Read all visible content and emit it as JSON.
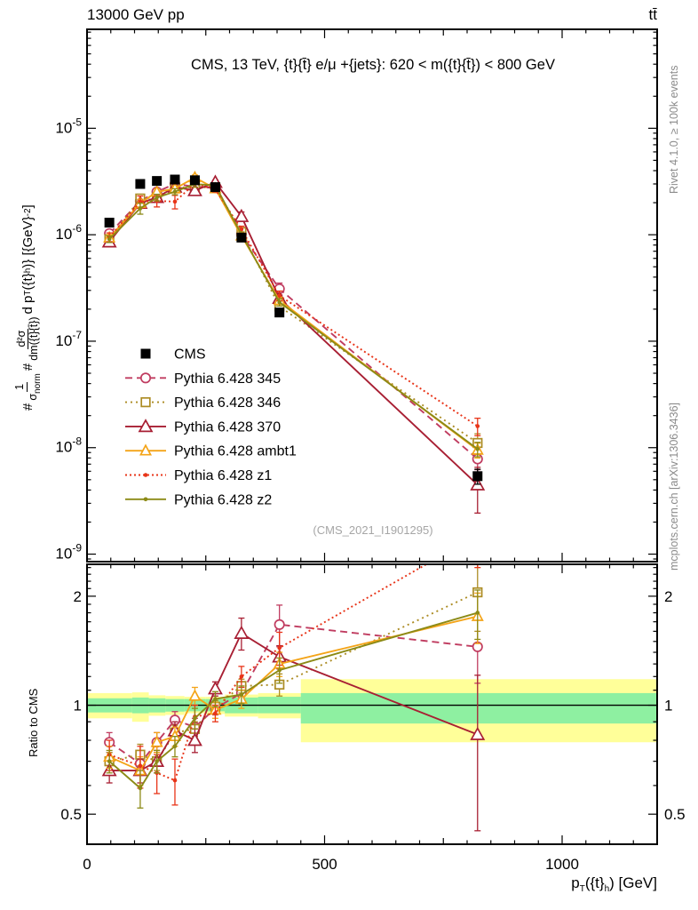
{
  "header": {
    "left": "13000 GeV pp",
    "right": "tt̄"
  },
  "panel_title": "CMS, 13 TeV, {t}{t̄} e/μ +{jets}: 620 < m({t}{t̄}) < 800 GeV",
  "watermark": "(CMS_2021_I1901295)",
  "side_notes": {
    "top": "Rivet 4.1.0, ≥ 100k events",
    "bottom": "mcplots.cern.ch [arXiv:1306.3436]"
  },
  "ratio_ylabel": "Ratio to CMS",
  "xlabel_parts": [
    {
      "t": "p"
    },
    {
      "sub": "T"
    },
    {
      "t": "({t}"
    },
    {
      "sub": "h"
    },
    {
      "t": ") [GeV]"
    }
  ],
  "ylabel_parts": [
    {
      "t": "#"
    },
    {
      "frac": [
        "1",
        "σ_norm"
      ]
    },
    {
      "t": "#"
    },
    {
      "frac": [
        "d²σ",
        "dm({t}{t̄})"
      ]
    },
    {
      "t": " d p"
    },
    {
      "sub": "T"
    },
    {
      "t": "({t}"
    },
    {
      "sub": "h"
    },
    {
      "t": ")} [{GeV}"
    },
    {
      "sup": "-2"
    },
    {
      "t": "]"
    }
  ],
  "colors": {
    "cms": "#000000",
    "band_yellow": "#ffff99",
    "band_green": "#8ef0a1",
    "frame": "#000000",
    "gray_text": "#8b8b8b"
  },
  "chart_data": {
    "type": "line",
    "title": "CMS, 13 TeV, {t}{t̄} e/μ +{jets}: 620 < m({t}{t̄}) < 800 GeV",
    "xlabel": "p_T({t}_h) [GeV]",
    "ylabel_main": "#1/σ_norm # d²σ/dm({t}{t̄}) d p_T({t}_h)} [{GeV}^-2]",
    "ylabel_ratio": "Ratio to CMS",
    "x": [
      47,
      112,
      147,
      185,
      227,
      270,
      325,
      405,
      822
    ],
    "bin_edges": [
      0,
      95,
      130,
      165,
      205,
      250,
      290,
      360,
      450,
      1200
    ],
    "axes": {
      "x": {
        "min": 0,
        "max": 1200,
        "major_ticks": [
          0,
          500,
          1000
        ],
        "minor_step": 50
      },
      "y_main": {
        "min": 8.5e-10,
        "max": 8.5e-05,
        "label_decades": [
          -5,
          -6,
          -7,
          -8,
          -9
        ]
      },
      "y_ratio": {
        "min": 0.413,
        "max": 2.45,
        "labeled_ticks": [
          2,
          1,
          0.5
        ]
      }
    },
    "cms": {
      "label": "CMS",
      "color": "#000000",
      "values": [
        1.3e-06,
        3e-06,
        3.2e-06,
        3.3e-06,
        3.25e-06,
        2.8e-06,
        9.4e-07,
        1.86e-07,
        5.4e-09
      ],
      "rel_err": [
        0.04,
        0.03,
        0.03,
        0.03,
        0.03,
        0.03,
        0.04,
        0.06,
        0.16
      ]
    },
    "series": [
      {
        "name": "Pythia 6.428 345",
        "color": "#c03c60",
        "dash": "8,5",
        "marker": "circle",
        "ratio": [
          0.79,
          0.69,
          0.79,
          0.91,
          0.87,
          0.98,
          1.08,
          1.67,
          1.45
        ],
        "err": [
          0.05,
          0.05,
          0.05,
          0.05,
          0.05,
          0.04,
          0.06,
          0.22,
          0.3
        ]
      },
      {
        "name": "Pythia 6.428 346",
        "color": "#ac8c24",
        "dash": "2,4",
        "marker": "square",
        "ratio": [
          0.7,
          0.73,
          0.7,
          0.84,
          0.86,
          0.99,
          1.13,
          1.14,
          2.05
        ],
        "err": [
          0.04,
          0.05,
          0.04,
          0.04,
          0.04,
          0.04,
          0.05,
          0.08,
          0.45
        ]
      },
      {
        "name": "Pythia 6.428 370",
        "color": "#a81f33",
        "dash": "",
        "marker": "triangle",
        "ratio": [
          0.66,
          0.66,
          0.7,
          0.85,
          0.8,
          1.11,
          1.58,
          1.36,
          0.83
        ],
        "err": [
          0.05,
          0.05,
          0.05,
          0.05,
          0.06,
          0.05,
          0.16,
          0.1,
          0.38
        ]
      },
      {
        "name": "Pythia 6.428 ambt1",
        "color": "#f4a418",
        "dash": "",
        "marker": "triangle-small",
        "ratio": [
          0.72,
          0.66,
          0.79,
          0.82,
          1.06,
          0.97,
          1.04,
          1.3,
          1.76
        ],
        "err": [
          0.05,
          0.06,
          0.05,
          0.05,
          0.06,
          0.05,
          0.06,
          0.1,
          0.28
        ]
      },
      {
        "name": "Pythia 6.428 z1",
        "color": "#e83418",
        "dash": "2,3",
        "marker": "dot",
        "ratio": [
          0.73,
          0.68,
          0.65,
          0.62,
          0.93,
          0.95,
          1.2,
          1.44,
          2.95
        ],
        "err": [
          0.07,
          0.09,
          0.08,
          0.09,
          0.07,
          0.05,
          0.08,
          0.15,
          0.55
        ]
      },
      {
        "name": "Pythia 6.428 z2",
        "color": "#8c8a16",
        "dash": "",
        "marker": "dot",
        "ratio": [
          0.7,
          0.59,
          0.7,
          0.77,
          0.92,
          1.04,
          1.07,
          1.25,
          1.8
        ],
        "err": [
          0.05,
          0.07,
          0.05,
          0.05,
          0.06,
          0.05,
          0.06,
          0.1,
          0.28
        ]
      }
    ],
    "bands": [
      {
        "x0": 0,
        "x1": 95,
        "yellow": [
          0.92,
          1.08
        ],
        "green": [
          0.955,
          1.045
        ]
      },
      {
        "x0": 95,
        "x1": 130,
        "yellow": [
          0.9,
          1.085
        ],
        "green": [
          0.95,
          1.05
        ]
      },
      {
        "x0": 130,
        "x1": 165,
        "yellow": [
          0.935,
          1.065
        ],
        "green": [
          0.955,
          1.045
        ]
      },
      {
        "x0": 165,
        "x1": 205,
        "yellow": [
          0.94,
          1.06
        ],
        "green": [
          0.96,
          1.04
        ]
      },
      {
        "x0": 205,
        "x1": 250,
        "yellow": [
          0.95,
          1.055
        ],
        "green": [
          0.962,
          1.04
        ]
      },
      {
        "x0": 250,
        "x1": 290,
        "yellow": [
          0.945,
          1.055
        ],
        "green": [
          0.962,
          1.04
        ]
      },
      {
        "x0": 290,
        "x1": 360,
        "yellow": [
          0.93,
          1.07
        ],
        "green": [
          0.95,
          1.05
        ]
      },
      {
        "x0": 360,
        "x1": 450,
        "yellow": [
          0.92,
          1.08
        ],
        "green": [
          0.95,
          1.055
        ]
      },
      {
        "x0": 450,
        "x1": 1200,
        "yellow": [
          0.79,
          1.18
        ],
        "green": [
          0.89,
          1.08
        ]
      }
    ]
  }
}
